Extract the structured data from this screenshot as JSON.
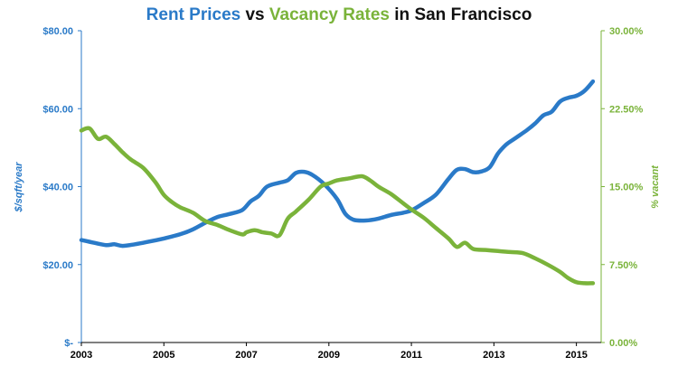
{
  "chart_data": {
    "type": "line",
    "title_parts": [
      {
        "text": "Rent Prices",
        "color": "#2a7ac8"
      },
      {
        "text": " vs ",
        "color": "#111111"
      },
      {
        "text": "Vacancy Rates",
        "color": "#7ab33a"
      },
      {
        "text": " in San Francisco",
        "color": "#111111"
      }
    ],
    "ylabel_left": "$/sqft/year",
    "ylabel_right": "% vacant",
    "x_ticks": [
      "2003",
      "2005",
      "2007",
      "2009",
      "2011",
      "2013",
      "2015"
    ],
    "y_left_ticks": [
      "$-",
      "$20.00",
      "$40.00",
      "$60.00",
      "$80.00"
    ],
    "y_right_ticks": [
      "0.00%",
      "7.50%",
      "15.00%",
      "22.50%",
      "30.00%"
    ],
    "xlim": [
      2003,
      2015.6
    ],
    "ylim_left": [
      0,
      80
    ],
    "ylim_right": [
      0,
      30
    ],
    "grid": false,
    "series": [
      {
        "name": "Rent Prices",
        "axis": "left",
        "color": "#2a7ac8",
        "x": [
          2003.0,
          2003.3,
          2003.6,
          2003.8,
          2004.0,
          2004.3,
          2004.6,
          2005.0,
          2005.4,
          2005.7,
          2006.0,
          2006.3,
          2006.6,
          2006.9,
          2007.1,
          2007.3,
          2007.5,
          2007.8,
          2008.0,
          2008.2,
          2008.4,
          2008.6,
          2008.9,
          2009.2,
          2009.4,
          2009.6,
          2009.9,
          2010.2,
          2010.5,
          2010.8,
          2011.0,
          2011.3,
          2011.6,
          2011.9,
          2012.1,
          2012.3,
          2012.5,
          2012.7,
          2012.9,
          2013.1,
          2013.3,
          2013.5,
          2013.8,
          2014.0,
          2014.2,
          2014.4,
          2014.6,
          2014.8,
          2015.0,
          2015.2,
          2015.4
        ],
        "values": [
          26.3,
          25.6,
          25.0,
          25.2,
          24.8,
          25.2,
          25.8,
          26.7,
          27.8,
          29.0,
          30.7,
          32.2,
          33.0,
          34.0,
          36.2,
          37.6,
          40.0,
          41.0,
          41.6,
          43.5,
          43.8,
          43.0,
          40.5,
          36.8,
          33.0,
          31.5,
          31.3,
          31.8,
          32.7,
          33.3,
          33.9,
          35.8,
          38.0,
          42.0,
          44.3,
          44.5,
          43.7,
          43.9,
          45.0,
          48.5,
          50.8,
          52.3,
          54.5,
          56.2,
          58.3,
          59.2,
          61.8,
          62.8,
          63.3,
          64.6,
          67.0
        ]
      },
      {
        "name": "Vacancy Rates",
        "axis": "right",
        "color": "#7ab33a",
        "x": [
          2003.0,
          2003.2,
          2003.4,
          2003.6,
          2003.8,
          2004.0,
          2004.2,
          2004.5,
          2004.8,
          2005.0,
          2005.2,
          2005.4,
          2005.7,
          2006.0,
          2006.3,
          2006.6,
          2006.9,
          2007.0,
          2007.2,
          2007.4,
          2007.6,
          2007.8,
          2008.0,
          2008.2,
          2008.5,
          2008.8,
          2009.0,
          2009.2,
          2009.5,
          2009.8,
          2010.0,
          2010.2,
          2010.5,
          2010.8,
          2011.0,
          2011.3,
          2011.6,
          2011.9,
          2012.1,
          2012.3,
          2012.5,
          2012.8,
          2013.1,
          2013.4,
          2013.7,
          2014.0,
          2014.3,
          2014.6,
          2014.8,
          2015.0,
          2015.2,
          2015.4
        ],
        "values": [
          20.4,
          20.6,
          19.6,
          19.8,
          19.1,
          18.3,
          17.6,
          16.8,
          15.4,
          14.2,
          13.5,
          13.0,
          12.5,
          11.7,
          11.3,
          10.8,
          10.4,
          10.6,
          10.8,
          10.6,
          10.5,
          10.3,
          11.9,
          12.6,
          13.7,
          15.0,
          15.3,
          15.6,
          15.8,
          16.0,
          15.6,
          15.0,
          14.3,
          13.4,
          12.8,
          12.0,
          11.0,
          10.0,
          9.2,
          9.6,
          9.0,
          8.9,
          8.8,
          8.7,
          8.6,
          8.1,
          7.5,
          6.8,
          6.2,
          5.8,
          5.7,
          5.7
        ]
      }
    ]
  }
}
